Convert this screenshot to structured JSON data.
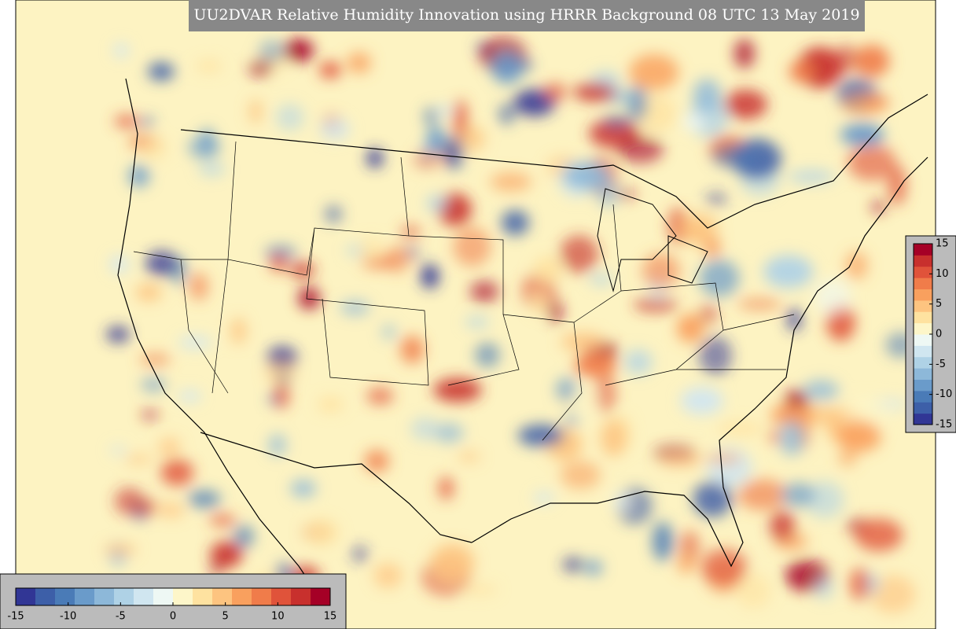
{
  "title": "UU2DVAR Relative Humidity Innovation using HRRR Background 08 UTC 13 May 2019",
  "colorbar_vertical": {
    "ticks": [
      15,
      10,
      5,
      0,
      -5,
      -10,
      -15
    ]
  },
  "colorbar_horizontal": {
    "ticks": [
      -15,
      -10,
      -5,
      0,
      5,
      10,
      15
    ]
  },
  "colors": [
    "#313695",
    "#3d5fa8",
    "#4a7bb7",
    "#6a9bca",
    "#8db8d9",
    "#afd2e6",
    "#d0e6f0",
    "#eef8f4",
    "#fdf6c9",
    "#fee2a0",
    "#fdc480",
    "#f9a05e",
    "#f07c4a",
    "#e0533a",
    "#c8302d",
    "#a50026"
  ]
}
